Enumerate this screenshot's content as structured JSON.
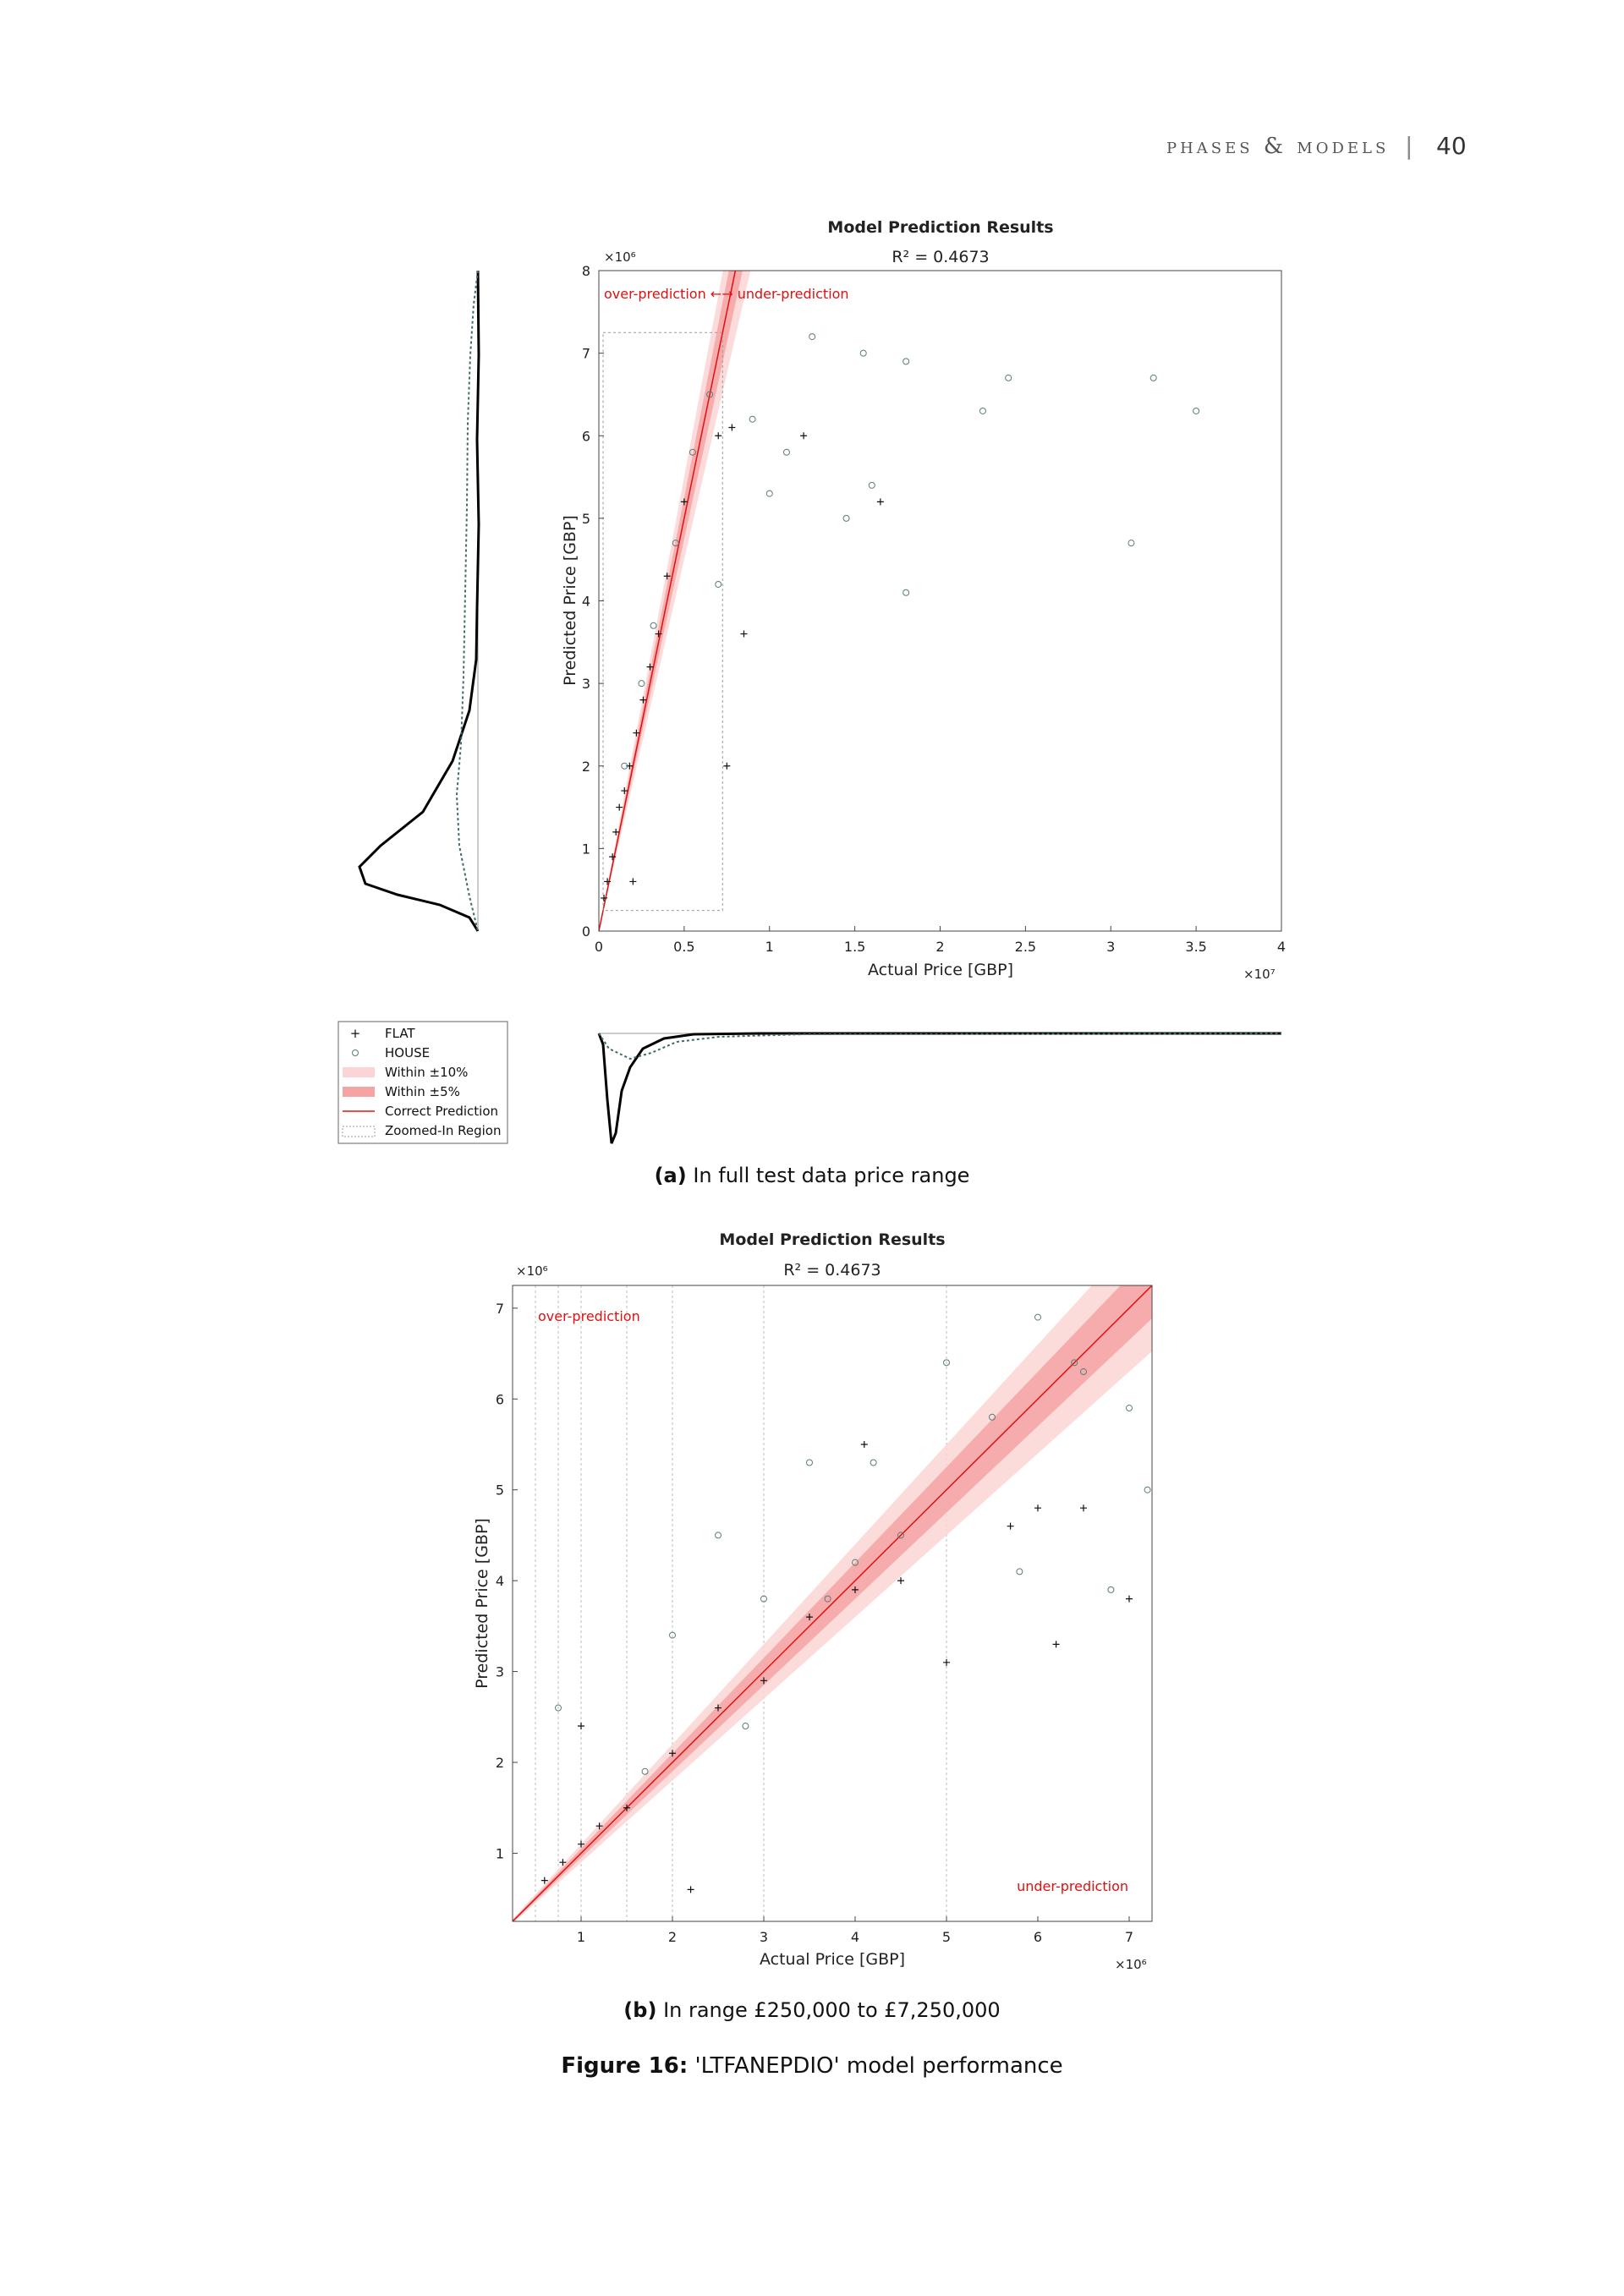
{
  "header": {
    "running_title": "phases & models",
    "separator": "|",
    "page_number": "40"
  },
  "legend": {
    "items": [
      {
        "label": "FLAT",
        "symbol": "plus"
      },
      {
        "label": "HOUSE",
        "symbol": "circle"
      },
      {
        "label": "Within ±10%",
        "symbol": "light-band"
      },
      {
        "label": "Within ±5%",
        "symbol": "dark-band"
      },
      {
        "label": "Correct Prediction",
        "symbol": "red-line"
      },
      {
        "label": "Zoomed-In Region",
        "symbol": "dotted-box"
      }
    ]
  },
  "colors": {
    "flat": "#111111",
    "house": "#5c7a7c",
    "band10": "#fbd5d5",
    "band5": "#f5a3a3",
    "correct_line": "#e01010",
    "annotation": "#e01010",
    "zoom_box": "#999999"
  },
  "captions": {
    "a_prefix": "(a)",
    "a_text": "In full test data price range",
    "b_prefix": "(b)",
    "b_text": "In range £250,000 to £7,250,000",
    "figure_prefix": "Figure 16:",
    "figure_text": "'LTFANEPDIO' model performance"
  },
  "chart_data": [
    {
      "type": "scatter",
      "title": "Model Prediction Results",
      "subtitle": "R² = 0.4673",
      "xlabel": "Actual Price [GBP]",
      "ylabel": "Predicted Price [GBP]",
      "x_multiplier": "×10⁷",
      "y_multiplier": "×10⁶",
      "xlim": [
        0,
        40000000
      ],
      "ylim": [
        0,
        8000000
      ],
      "x_ticks": [
        "0",
        "0.5",
        "1",
        "1.5",
        "2",
        "2.5",
        "3",
        "3.5",
        "4"
      ],
      "y_ticks": [
        "0",
        "1",
        "2",
        "3",
        "4",
        "5",
        "6",
        "7",
        "8"
      ],
      "annotation": "over-prediction ←→ under-prediction",
      "zoom_region": {
        "x": [
          250000,
          7250000
        ],
        "y": [
          250000,
          7250000
        ]
      },
      "grid": false,
      "series": [
        {
          "name": "FLAT",
          "marker": "+",
          "points": [
            [
              300000,
              400000
            ],
            [
              500000,
              600000
            ],
            [
              800000,
              900000
            ],
            [
              1000000,
              1200000
            ],
            [
              1200000,
              1500000
            ],
            [
              1500000,
              1700000
            ],
            [
              1800000,
              2000000
            ],
            [
              2200000,
              2400000
            ],
            [
              2600000,
              2800000
            ],
            [
              3000000,
              3200000
            ],
            [
              3500000,
              3600000
            ],
            [
              4000000,
              4300000
            ],
            [
              5000000,
              5200000
            ],
            [
              7000000,
              6000000
            ],
            [
              7800000,
              6100000
            ],
            [
              8500000,
              3600000
            ],
            [
              16500000,
              5200000
            ],
            [
              12000000,
              6000000
            ],
            [
              2000000,
              600000
            ],
            [
              7500000,
              2000000
            ]
          ]
        },
        {
          "name": "HOUSE",
          "marker": "o",
          "points": [
            [
              1500000,
              2000000
            ],
            [
              2500000,
              3000000
            ],
            [
              3200000,
              3700000
            ],
            [
              4500000,
              4700000
            ],
            [
              5500000,
              5800000
            ],
            [
              6500000,
              6500000
            ],
            [
              9000000,
              6200000
            ],
            [
              10000000,
              5300000
            ],
            [
              11000000,
              5800000
            ],
            [
              12500000,
              7200000
            ],
            [
              14500000,
              5000000
            ],
            [
              16000000,
              5400000
            ],
            [
              18000000,
              6900000
            ],
            [
              18000000,
              4100000
            ],
            [
              22500000,
              6300000
            ],
            [
              24000000,
              6700000
            ],
            [
              31200000,
              4700000
            ],
            [
              32500000,
              6700000
            ],
            [
              35000000,
              6300000
            ],
            [
              15500000,
              7000000
            ],
            [
              7000000,
              4200000
            ]
          ]
        }
      ],
      "reference_line": {
        "name": "Correct Prediction",
        "slope": 1
      },
      "bands": [
        {
          "name": "Within ±10%",
          "pct": 10
        },
        {
          "name": "Within ±5%",
          "pct": 5
        }
      ]
    },
    {
      "type": "scatter",
      "title": "Model Prediction Results",
      "subtitle": "R² = 0.4673",
      "xlabel": "Actual Price [GBP]",
      "ylabel": "Predicted Price [GBP]",
      "x_multiplier": "×10⁶",
      "y_multiplier": "×10⁶",
      "xlim": [
        250000,
        7250000
      ],
      "ylim": [
        250000,
        7250000
      ],
      "x_ticks": [
        "1",
        "2",
        "3",
        "4",
        "5",
        "6",
        "7"
      ],
      "y_ticks": [
        "1",
        "2",
        "3",
        "4",
        "5",
        "6",
        "7"
      ],
      "annotation_over": "over-prediction",
      "annotation_under": "under-prediction",
      "vertical_gridlines": [
        500000,
        750000,
        1000000,
        1500000,
        2000000,
        3000000,
        5000000
      ],
      "series": [
        {
          "name": "FLAT",
          "marker": "+",
          "points": [
            [
              600000,
              700000
            ],
            [
              800000,
              900000
            ],
            [
              1000000,
              1100000
            ],
            [
              1200000,
              1300000
            ],
            [
              1500000,
              1500000
            ],
            [
              2000000,
              2100000
            ],
            [
              2500000,
              2600000
            ],
            [
              3000000,
              2900000
            ],
            [
              3500000,
              3600000
            ],
            [
              4000000,
              3900000
            ],
            [
              4100000,
              5500000
            ],
            [
              4500000,
              4000000
            ],
            [
              5000000,
              3100000
            ],
            [
              5700000,
              4600000
            ],
            [
              6000000,
              4800000
            ],
            [
              6200000,
              3300000
            ],
            [
              6500000,
              4800000
            ],
            [
              7000000,
              3800000
            ],
            [
              2200000,
              600000
            ],
            [
              1000000,
              2400000
            ]
          ]
        },
        {
          "name": "HOUSE",
          "marker": "o",
          "points": [
            [
              750000,
              2600000
            ],
            [
              2000000,
              3400000
            ],
            [
              2500000,
              4500000
            ],
            [
              3500000,
              5300000
            ],
            [
              4000000,
              4200000
            ],
            [
              4500000,
              4500000
            ],
            [
              5000000,
              6400000
            ],
            [
              5500000,
              5800000
            ],
            [
              6000000,
              6900000
            ],
            [
              6500000,
              6300000
            ],
            [
              7000000,
              5900000
            ],
            [
              7200000,
              5000000
            ],
            [
              6800000,
              3900000
            ],
            [
              5800000,
              4100000
            ],
            [
              3000000,
              3800000
            ],
            [
              3700000,
              3800000
            ],
            [
              1700000,
              1900000
            ],
            [
              2800000,
              2400000
            ],
            [
              4200000,
              5300000
            ],
            [
              6400000,
              6400000
            ]
          ]
        }
      ],
      "reference_line": {
        "name": "Correct Prediction",
        "slope": 1
      },
      "bands": [
        {
          "name": "Within ±10%",
          "pct": 10
        },
        {
          "name": "Within ±5%",
          "pct": 5
        }
      ]
    }
  ]
}
